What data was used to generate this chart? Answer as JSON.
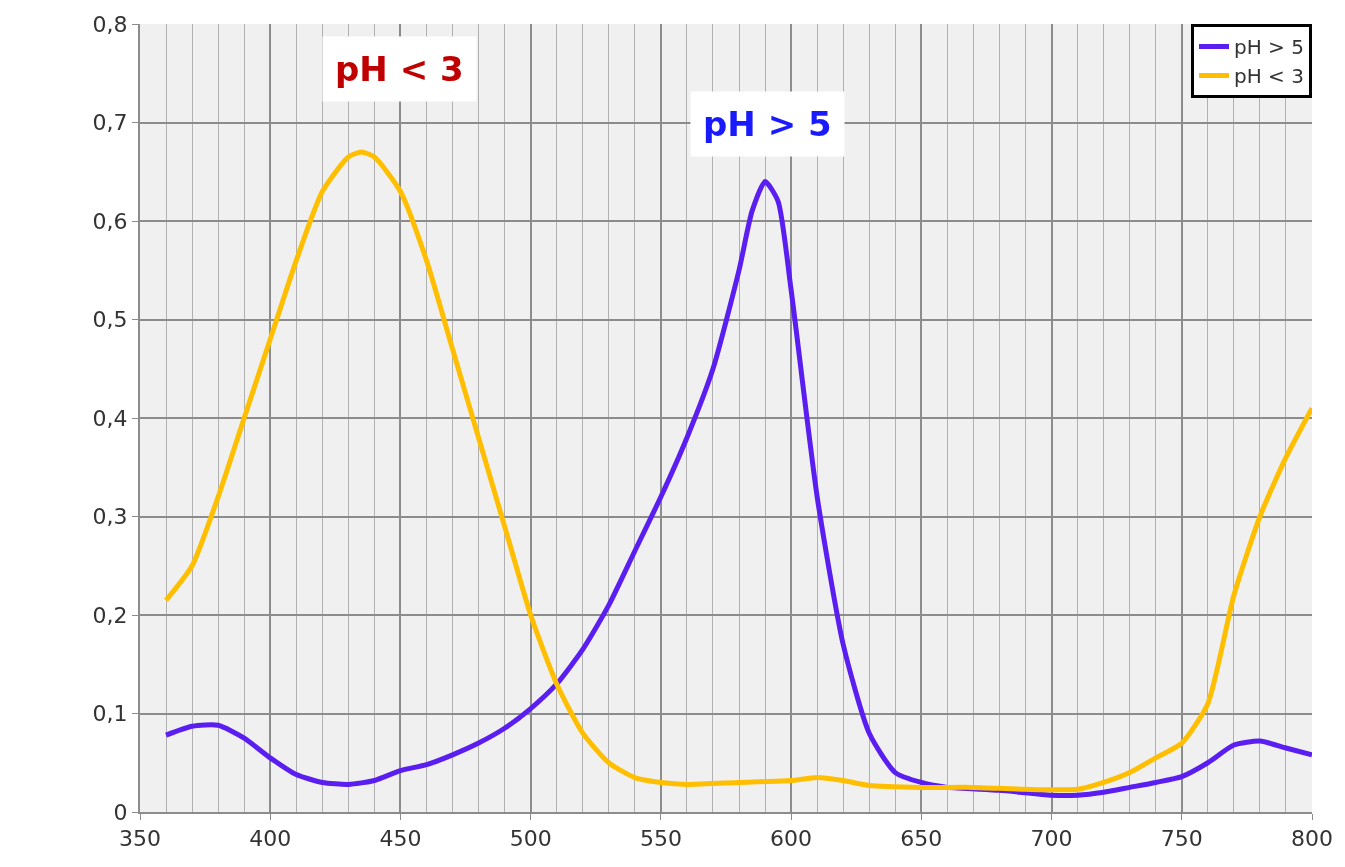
{
  "chart_data": {
    "type": "line",
    "xlim": [
      350,
      800
    ],
    "xticks": [
      350,
      400,
      450,
      500,
      550,
      600,
      650,
      700,
      750,
      800
    ],
    "ylim": [
      0,
      0.8
    ],
    "yticks": [
      {
        "value": 0,
        "label": "0"
      },
      {
        "value": 0.1,
        "label": "0,1"
      },
      {
        "value": 0.2,
        "label": "0,2"
      },
      {
        "value": 0.3,
        "label": "0,3"
      },
      {
        "value": 0.4,
        "label": "0,4"
      },
      {
        "value": 0.5,
        "label": "0,5"
      },
      {
        "value": 0.6,
        "label": "0,6"
      },
      {
        "value": 0.7,
        "label": "0,7"
      },
      {
        "value": 0.8,
        "label": "0,8"
      }
    ],
    "grid": true,
    "legend": "top right",
    "marker": "none",
    "line_style": "solid",
    "series": [
      {
        "name": "pH > 5",
        "color": "#5b1ef0",
        "x": [
          360,
          370,
          380,
          390,
          400,
          410,
          420,
          430,
          440,
          450,
          460,
          470,
          480,
          490,
          500,
          510,
          520,
          530,
          540,
          550,
          560,
          570,
          580,
          585,
          590,
          595,
          600,
          610,
          620,
          630,
          640,
          650,
          660,
          680,
          700,
          710,
          720,
          730,
          740,
          750,
          760,
          770,
          780,
          790,
          800
        ],
        "values": [
          0.078,
          0.087,
          0.088,
          0.075,
          0.055,
          0.038,
          0.03,
          0.028,
          0.032,
          0.042,
          0.048,
          0.058,
          0.07,
          0.085,
          0.105,
          0.13,
          0.165,
          0.21,
          0.265,
          0.32,
          0.38,
          0.45,
          0.55,
          0.61,
          0.64,
          0.62,
          0.53,
          0.32,
          0.17,
          0.08,
          0.04,
          0.03,
          0.025,
          0.022,
          0.017,
          0.017,
          0.02,
          0.025,
          0.03,
          0.036,
          0.05,
          0.068,
          0.072,
          0.065,
          0.058
        ]
      },
      {
        "name": "pH < 3",
        "color": "#ffbf00",
        "x": [
          360,
          370,
          380,
          390,
          400,
          410,
          420,
          430,
          435,
          440,
          450,
          460,
          470,
          480,
          490,
          500,
          510,
          520,
          530,
          540,
          550,
          560,
          580,
          600,
          610,
          620,
          630,
          650,
          670,
          690,
          710,
          720,
          730,
          740,
          750,
          760,
          770,
          780,
          790,
          800
        ],
        "values": [
          0.215,
          0.25,
          0.32,
          0.4,
          0.48,
          0.56,
          0.63,
          0.665,
          0.67,
          0.665,
          0.63,
          0.56,
          0.47,
          0.38,
          0.29,
          0.2,
          0.13,
          0.08,
          0.05,
          0.035,
          0.03,
          0.028,
          0.03,
          0.032,
          0.035,
          0.032,
          0.027,
          0.025,
          0.025,
          0.023,
          0.023,
          0.03,
          0.04,
          0.055,
          0.07,
          0.11,
          0.22,
          0.3,
          0.36,
          0.41
        ]
      }
    ],
    "annotations": [
      "pH < 3",
      "pH > 5"
    ]
  }
}
